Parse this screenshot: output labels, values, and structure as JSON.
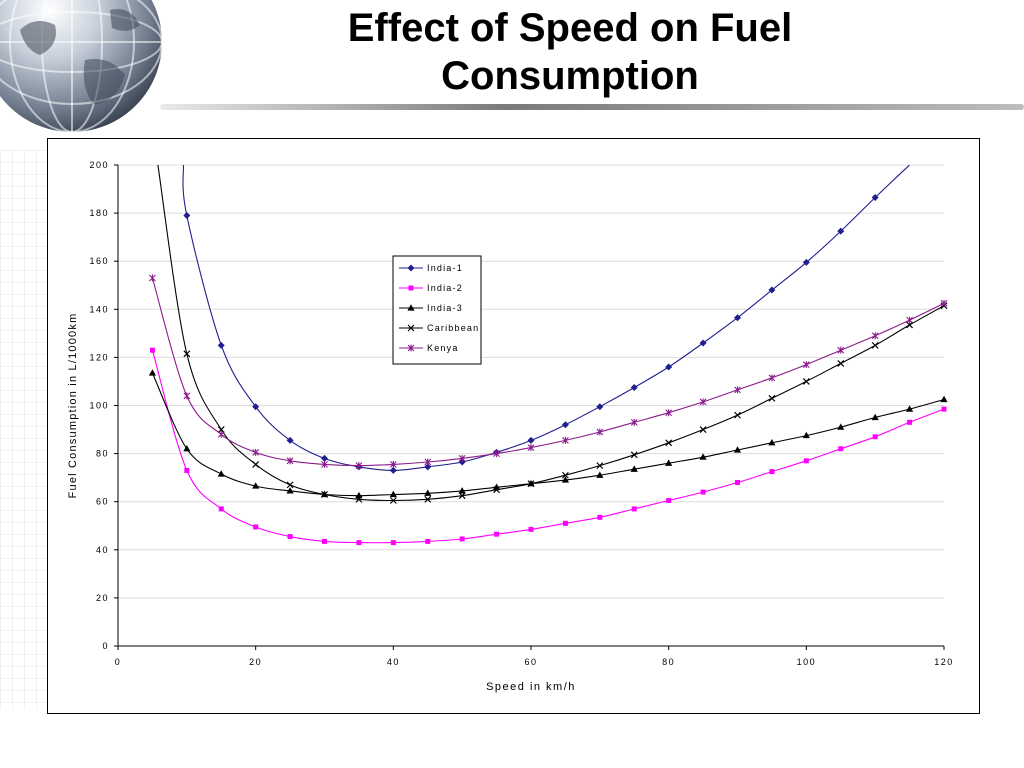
{
  "slide": {
    "title_line1": "Effect of Speed on Fuel",
    "title_line2": "Consumption"
  },
  "chart_data": {
    "type": "line",
    "title": "",
    "xlabel": "Speed in km/h",
    "ylabel": "Fuel Consumption in L/1000km",
    "xlim": [
      0,
      120
    ],
    "ylim": [
      0,
      200
    ],
    "x_ticks": [
      0,
      20,
      40,
      60,
      80,
      100,
      120
    ],
    "y_ticks": [
      0,
      20,
      40,
      60,
      80,
      100,
      120,
      140,
      160,
      180,
      200
    ],
    "grid": "horizontal",
    "legend_position": "top-center",
    "series": [
      {
        "name": "India-1",
        "color": "#1f1f8f",
        "marker": "diamond",
        "x": [
          10,
          15,
          20,
          25,
          30,
          35,
          40,
          45,
          50,
          55,
          60,
          65,
          70,
          75,
          80,
          85,
          90,
          95,
          100,
          105,
          110
        ],
        "y": [
          179,
          125,
          99.5,
          85.5,
          78,
          74.5,
          73,
          74.5,
          76.5,
          80.5,
          85.5,
          92,
          99.5,
          107.5,
          116,
          126,
          136.5,
          148,
          159.5,
          172.5,
          186.5
        ],
        "curve_extra": [
          [
            9.5,
            200
          ],
          [
            115,
            200
          ]
        ]
      },
      {
        "name": "India-2",
        "color": "#ff00ff",
        "marker": "square",
        "x": [
          5,
          10,
          15,
          20,
          25,
          30,
          35,
          40,
          45,
          50,
          55,
          60,
          65,
          70,
          75,
          80,
          85,
          90,
          95,
          100,
          105,
          110,
          115,
          120
        ],
        "y": [
          123,
          73,
          57,
          49.5,
          45.5,
          43.5,
          43,
          43,
          43.5,
          44.5,
          46.5,
          48.5,
          51,
          53.5,
          57,
          60.5,
          64,
          68,
          72.5,
          77,
          82,
          87,
          93,
          98.5
        ]
      },
      {
        "name": "India-3",
        "color": "#000000",
        "marker": "triangle",
        "x": [
          5,
          10,
          15,
          20,
          25,
          30,
          35,
          40,
          45,
          50,
          55,
          60,
          65,
          70,
          75,
          80,
          85,
          90,
          95,
          100,
          105,
          110,
          115,
          120
        ],
        "y": [
          113.5,
          82,
          71.5,
          66.5,
          64.5,
          63,
          62.5,
          63,
          63.5,
          64.5,
          66,
          67.5,
          69,
          71,
          73.5,
          76,
          78.5,
          81.5,
          84.5,
          87.5,
          91,
          95,
          98.5,
          102.5
        ]
      },
      {
        "name": "Caribbean",
        "color": "#000000",
        "marker": "x",
        "x": [
          10,
          15,
          20,
          25,
          30,
          35,
          40,
          45,
          50,
          55,
          60,
          65,
          70,
          75,
          80,
          85,
          90,
          95,
          100,
          105,
          110,
          115,
          120
        ],
        "y": [
          121.5,
          90,
          75.5,
          67,
          63,
          61,
          60.5,
          61,
          62.5,
          65,
          67.5,
          71,
          75,
          79.5,
          84.5,
          90,
          96,
          103,
          110,
          117.5,
          125,
          133.5,
          141.5
        ],
        "curve_extra": [
          [
            5.8,
            200
          ]
        ]
      },
      {
        "name": "Kenya",
        "color": "#8b1a8b",
        "marker": "star",
        "x": [
          5,
          10,
          15,
          20,
          25,
          30,
          35,
          40,
          45,
          50,
          55,
          60,
          65,
          70,
          75,
          80,
          85,
          90,
          95,
          100,
          105,
          110,
          115,
          120
        ],
        "y": [
          153,
          104,
          88,
          80.5,
          77,
          75.5,
          75,
          75.5,
          76.5,
          78,
          80,
          82.5,
          85.5,
          89,
          93,
          97,
          101.5,
          106.5,
          111.5,
          117,
          123,
          129,
          135.5,
          142.5
        ]
      }
    ]
  }
}
